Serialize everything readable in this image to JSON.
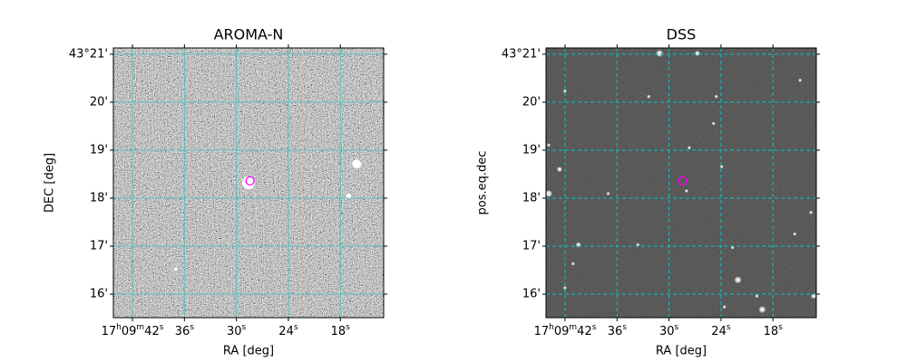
{
  "chart_data": [
    {
      "type": "image",
      "title": "AROMA-N",
      "xlabel": "RA [deg]",
      "ylabel": "DEC [deg]",
      "image_style": "noise",
      "grid": true,
      "grid_style": "solid",
      "grid_color": "#3fbfbf",
      "xlim": [
        44.2,
        13.0
      ],
      "xticks": [
        {
          "value": 42,
          "label": "17h09m42s"
        },
        {
          "value": 36,
          "label": "36s"
        },
        {
          "value": 30,
          "label": "30s"
        },
        {
          "value": 24,
          "label": "24s"
        },
        {
          "value": 18,
          "label": "18s"
        }
      ],
      "ylim": [
        15.51,
        21.13
      ],
      "yticks": [
        {
          "value": 21,
          "label": "43°21'"
        },
        {
          "value": 20,
          "label": "20'"
        },
        {
          "value": 19,
          "label": "19'"
        },
        {
          "value": 18,
          "label": "18'"
        },
        {
          "value": 17,
          "label": "17'"
        },
        {
          "value": 16,
          "label": "16'"
        }
      ],
      "marker": {
        "x": 28.43,
        "y": 18.36,
        "color": "#ff00ff"
      }
    },
    {
      "type": "image",
      "title": "DSS",
      "xlabel": "RA [deg]",
      "ylabel": "pos.eq.dec",
      "image_style": "stars",
      "grid": true,
      "grid_style": "dashed",
      "grid_color": "#00c8c8",
      "xlim": [
        44.2,
        13.0
      ],
      "xticks": [
        {
          "value": 42,
          "label": "17h09m42s"
        },
        {
          "value": 36,
          "label": "36s"
        },
        {
          "value": 30,
          "label": "30s"
        },
        {
          "value": 24,
          "label": "24s"
        },
        {
          "value": 18,
          "label": "18s"
        }
      ],
      "ylim": [
        15.51,
        21.13
      ],
      "yticks": [
        {
          "value": 21,
          "label": "43°21'"
        },
        {
          "value": 20,
          "label": "20'"
        },
        {
          "value": 19,
          "label": "19'"
        },
        {
          "value": 18,
          "label": "18'"
        },
        {
          "value": 17,
          "label": "17'"
        },
        {
          "value": 16,
          "label": "16'"
        }
      ],
      "marker": {
        "x": 28.43,
        "y": 18.36,
        "color": "#ff00ff"
      }
    }
  ]
}
